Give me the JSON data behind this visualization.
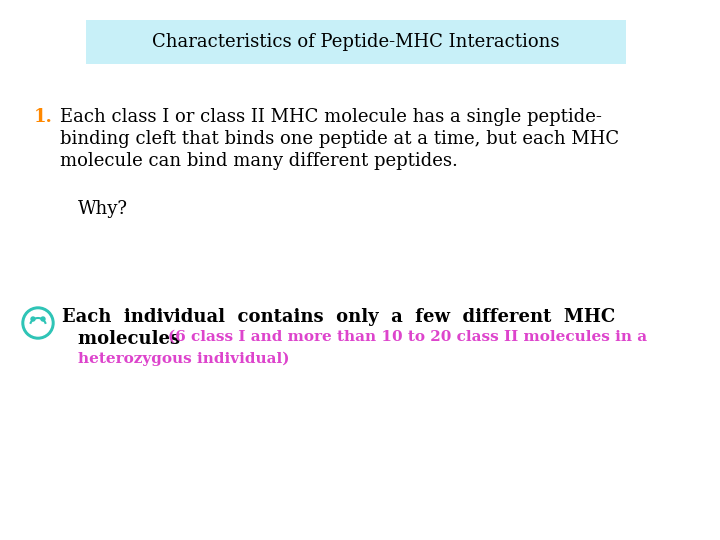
{
  "title": "Characteristics of Peptide-MHC Interactions",
  "title_bg": "#c8f0f8",
  "title_color": "#000000",
  "title_fontsize": 13,
  "body_fontsize": 13,
  "small_fontsize": 11,
  "bg_color": "#ffffff",
  "point1_number_color": "#ff8800",
  "point1_text_line1": "Each class I or class II MHC molecule has a single peptide-",
  "point1_text_line2": "binding cleft that binds one peptide at a time, but each MHC",
  "point1_text_line3": "molecule can bind many different peptides.",
  "why_text": "Why?",
  "bullet_line1": "Each  individual  contains  only  a  few  different  MHC",
  "bullet_line2_black": "molecules ",
  "bullet_line2_pink": "(6 class I and more than 10 to 20 class II molecules in a",
  "bullet_line3_pink": "heterozygous individual)",
  "bullet_color_pink": "#dd44cc",
  "smiley_color": "#2ec4b6"
}
